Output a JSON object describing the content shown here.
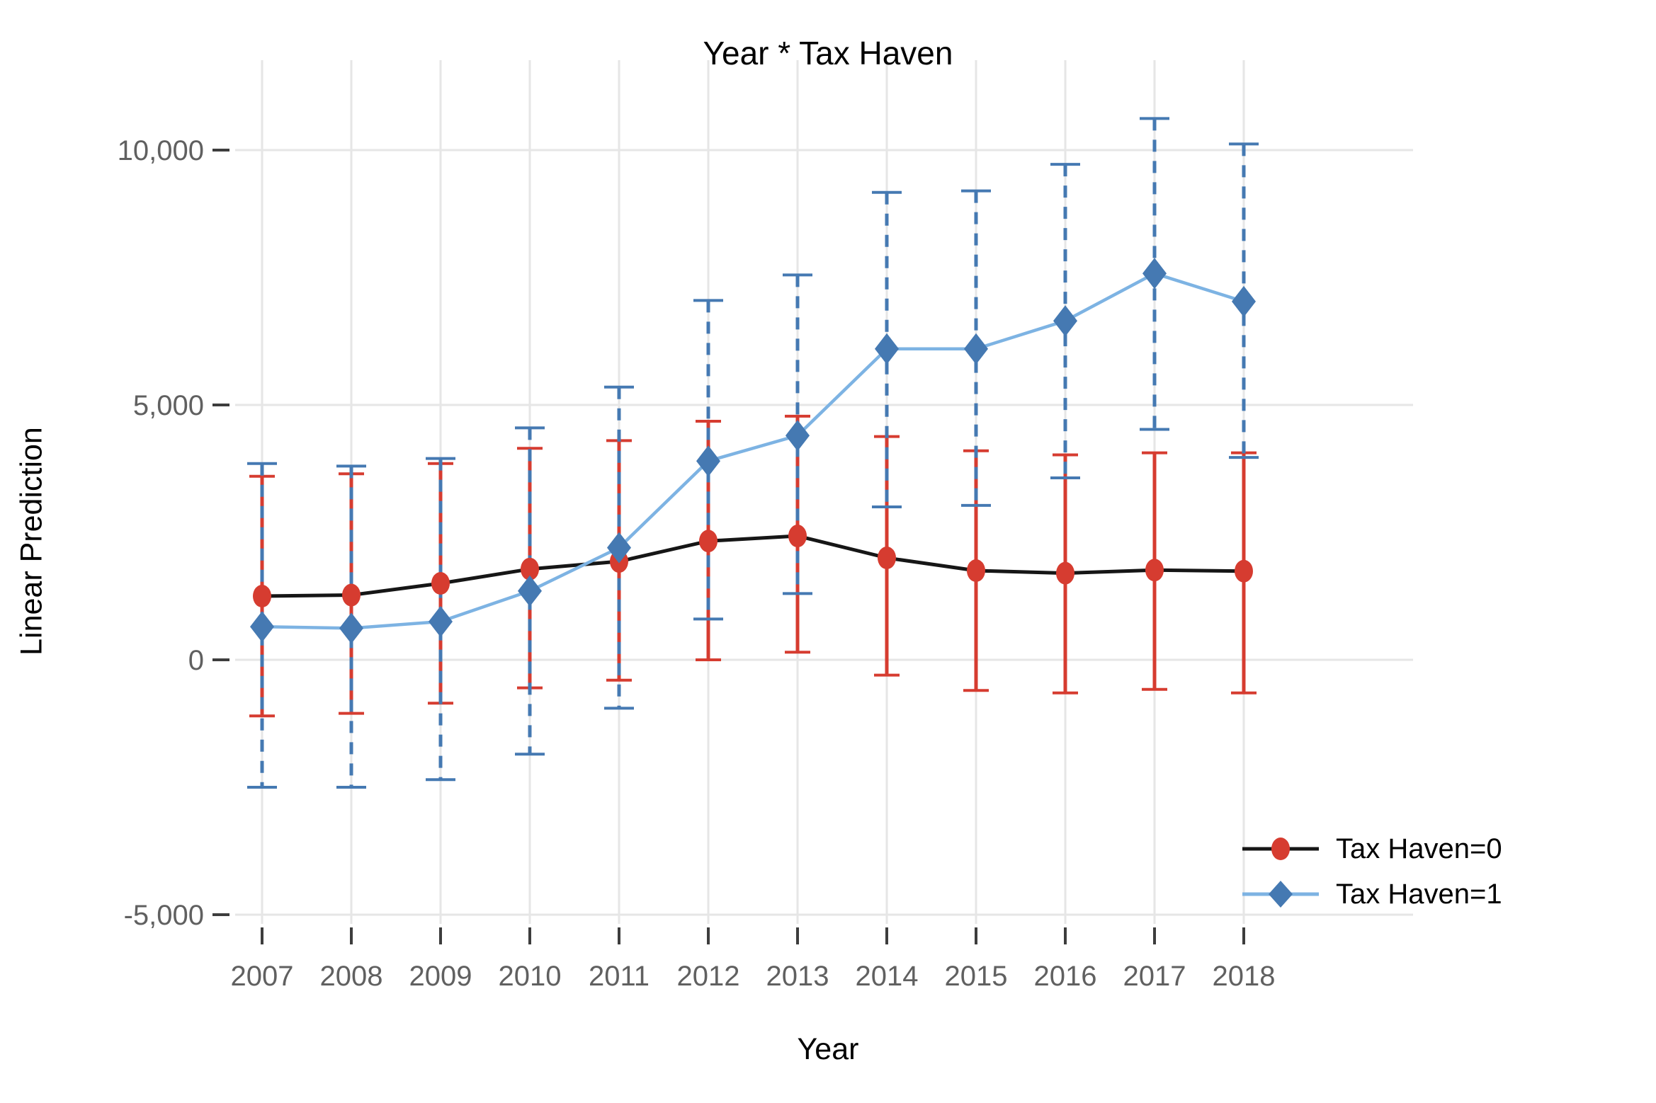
{
  "chart_data": {
    "type": "line",
    "title": "Year * Tax Haven",
    "xlabel": "Year",
    "ylabel": "Linear Prediction",
    "x": [
      2007,
      2008,
      2009,
      2010,
      2011,
      2012,
      2013,
      2014,
      2015,
      2016,
      2017,
      2018
    ],
    "x_tick_labels": [
      "2007",
      "2008",
      "2009",
      "2010",
      "2011",
      "2012",
      "2013",
      "2014",
      "2015",
      "2016",
      "2017",
      "2018"
    ],
    "y_ticks": [
      -5000,
      0,
      5000,
      10000
    ],
    "y_tick_labels": [
      "-5,000",
      "0",
      "5,000",
      "10,000"
    ],
    "ylim": [
      -5200,
      11800
    ],
    "grid": true,
    "legend_position": "right-bottom",
    "series": [
      {
        "name": "Tax Haven=0",
        "marker": "circle",
        "line_color": "#161616",
        "marker_color": "#d63c30",
        "ci_color": "#d63c30",
        "ci_style": "solid",
        "values": [
          1250,
          1270,
          1500,
          1780,
          1930,
          2330,
          2430,
          2000,
          1750,
          1700,
          1760,
          1740
        ],
        "ci_lower": [
          -1100,
          -1050,
          -850,
          -550,
          -400,
          0,
          150,
          -300,
          -600,
          -650,
          -580,
          -650
        ],
        "ci_upper": [
          3600,
          3650,
          3850,
          4150,
          4300,
          4680,
          4780,
          4380,
          4100,
          4020,
          4060,
          4060
        ]
      },
      {
        "name": "Tax Haven=1",
        "marker": "diamond",
        "line_color": "#7db3e3",
        "marker_color": "#4579b2",
        "ci_color": "#4579b2",
        "ci_style": "dashed",
        "values": [
          650,
          620,
          750,
          1350,
          2200,
          3900,
          4400,
          6100,
          6100,
          6650,
          7580,
          7030
        ],
        "ci_lower": [
          -2500,
          -2500,
          -2350,
          -1850,
          -950,
          800,
          1300,
          3000,
          3030,
          3570,
          4520,
          3970
        ],
        "ci_upper": [
          3850,
          3800,
          3950,
          4550,
          5350,
          7050,
          7550,
          9170,
          9200,
          9720,
          10620,
          10120
        ]
      }
    ],
    "style": {
      "grid_color": "#e6e6e6",
      "tick_mark_color": "#3d3d3d",
      "tick_label_color": "#606060",
      "background": "#ffffff"
    }
  }
}
